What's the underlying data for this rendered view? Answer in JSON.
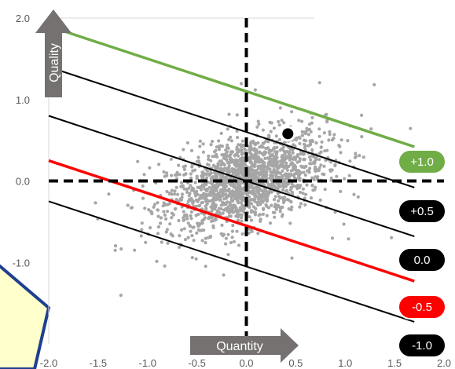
{
  "chart_data": {
    "type": "scatter",
    "title": "",
    "xlim": [
      -2.0,
      2.0
    ],
    "ylim": [
      -2.0,
      2.0
    ],
    "x_ticks": [
      "-2.0",
      "-1.5",
      "-1.0",
      "-0.5",
      "0.0",
      "0.5",
      "1.0",
      "1.5",
      "2.0"
    ],
    "y_ticks": [
      "-1.0",
      "0.0",
      "1.0",
      "2.0"
    ],
    "x_axis_arrow_label": "Quantity",
    "y_axis_arrow_label": "Quality",
    "scatter": {
      "color": "#a6a6a6",
      "count": 1800,
      "center": [
        0.0,
        0.0
      ],
      "spread_x": 0.4,
      "spread_y": 0.3,
      "correlation": 0.45
    },
    "highlight_point": {
      "x": 0.42,
      "y": 0.58,
      "color": "#000000"
    },
    "reference_lines": {
      "slope": -0.4,
      "x_start": -2.0,
      "x_end": 1.7
    },
    "iso_lines": [
      {
        "label": "+1.0",
        "intercept": 1.1,
        "line_color": "#70ad47",
        "pill_color": "#70ad47"
      },
      {
        "label": "+0.5",
        "intercept": 0.6,
        "line_color": "#000000",
        "pill_color": "#000000"
      },
      {
        "label": "0.0",
        "intercept": 0.0,
        "line_color": "#000000",
        "pill_color": "#000000"
      },
      {
        "label": "-0.5",
        "intercept": -0.55,
        "line_color": "#ff0000",
        "pill_color": "#ff0000"
      },
      {
        "label": "-1.0",
        "intercept": -1.05,
        "line_color": "#000000",
        "pill_color": "#000000"
      }
    ],
    "crosshair": {
      "x": 0.0,
      "y": 0.0,
      "style": "dashed",
      "color": "#000000"
    },
    "grid": false
  },
  "colors": {
    "arrow_fill": "#767171",
    "callout_fill": "#ffffcc",
    "callout_border": "#1f3f8f",
    "axis_line": "#d9d9d9"
  }
}
